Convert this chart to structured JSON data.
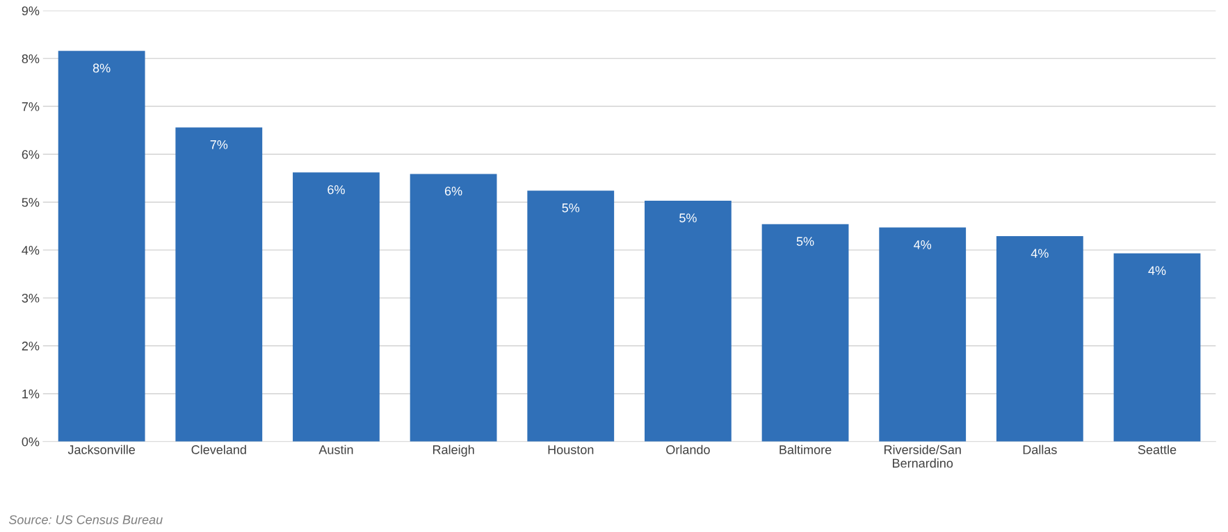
{
  "chart_data": {
    "type": "bar",
    "categories": [
      "Jacksonville",
      "Cleveland",
      "Austin",
      "Raleigh",
      "Houston",
      "Orlando",
      "Baltimore",
      "Riverside/San\nBernardino",
      "Dallas",
      "Seattle"
    ],
    "values": [
      8.16,
      6.56,
      5.62,
      5.59,
      5.24,
      5.03,
      4.54,
      4.47,
      4.29,
      3.93
    ],
    "value_labels": [
      "8%",
      "7%",
      "6%",
      "6%",
      "5%",
      "5%",
      "5%",
      "4%",
      "4%",
      "4%"
    ],
    "color": "#3070b8",
    "ylim": [
      0,
      9
    ],
    "yticks": [
      {
        "value": 0,
        "label": "0%"
      },
      {
        "value": 1,
        "label": "1%"
      },
      {
        "value": 2,
        "label": "2%"
      },
      {
        "value": 3,
        "label": "3%"
      },
      {
        "value": 4,
        "label": "4%"
      },
      {
        "value": 5,
        "label": "5%"
      },
      {
        "value": 6,
        "label": "6%"
      },
      {
        "value": 7,
        "label": "7%"
      },
      {
        "value": 8,
        "label": "8%"
      },
      {
        "value": 9,
        "label": "9%"
      }
    ],
    "grid": "y",
    "annotations": [
      "Source: US Census Bureau"
    ]
  }
}
